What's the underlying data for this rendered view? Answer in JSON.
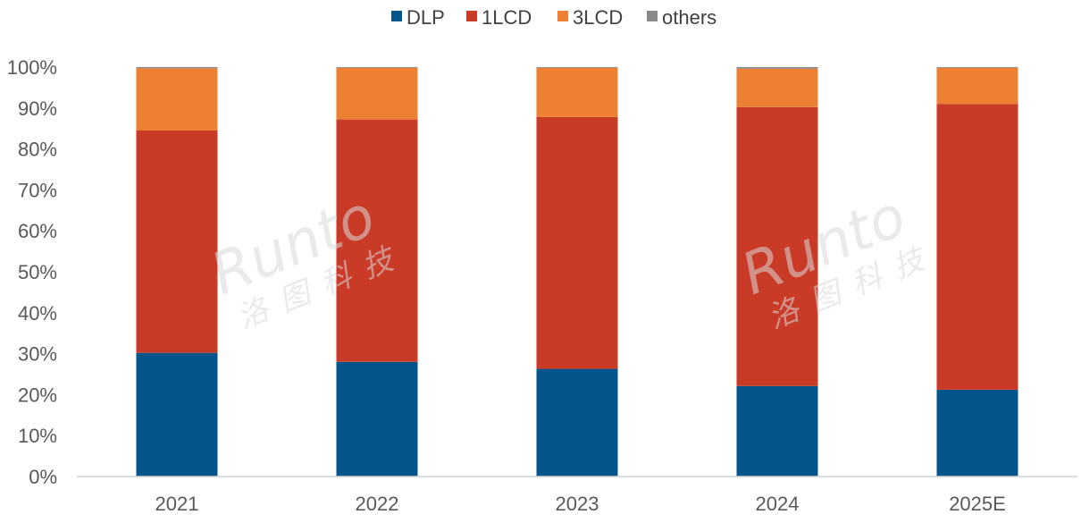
{
  "chart_data": {
    "type": "bar",
    "stacked": true,
    "categories": [
      "2021",
      "2022",
      "2023",
      "2024",
      "2025E"
    ],
    "series": [
      {
        "name": "DLP",
        "color": "#06558a",
        "values": [
          30.2,
          28.0,
          26.3,
          22.1,
          21.2
        ]
      },
      {
        "name": "1LCD",
        "color": "#c93a27",
        "values": [
          54.3,
          59.2,
          61.5,
          68.1,
          69.8
        ]
      },
      {
        "name": "3LCD",
        "color": "#ee8033",
        "values": [
          15.2,
          12.6,
          12.0,
          9.4,
          8.8
        ]
      },
      {
        "name": "others",
        "color": "#898989",
        "values": [
          0.3,
          0.2,
          0.2,
          0.4,
          0.2
        ]
      }
    ],
    "ylim": [
      0,
      100
    ],
    "yticks": [
      "0%",
      "10%",
      "20%",
      "30%",
      "40%",
      "50%",
      "60%",
      "70%",
      "80%",
      "90%",
      "100%"
    ],
    "legend_position": "top",
    "grid": false
  },
  "watermark": {
    "brand": "Runto",
    "chinese": "洛图科技"
  }
}
